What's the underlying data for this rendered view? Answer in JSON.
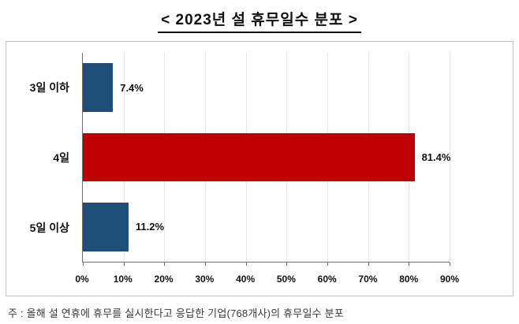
{
  "title": "< 2023년 설 휴무일수 분포 >",
  "footnote": "주 : 올해 설 연휴에 휴무를 실시한다고 응답한 기업(768개사)의 휴무일수 분포",
  "chart_data": {
    "type": "bar",
    "orientation": "horizontal",
    "title": "< 2023년 설 휴무일수 분포 >",
    "categories": [
      "3일 이하",
      "4일",
      "5일 이상"
    ],
    "values": [
      7.4,
      81.4,
      11.2
    ],
    "value_labels": [
      "7.4%",
      "81.4%",
      "11.2%"
    ],
    "bar_colors": [
      "#1f4e79",
      "#c00000",
      "#1f4e79"
    ],
    "xlim": [
      0,
      90
    ],
    "x_ticks": [
      0,
      10,
      20,
      30,
      40,
      50,
      60,
      70,
      80,
      90
    ],
    "x_tick_labels": [
      "0%",
      "10%",
      "20%",
      "30%",
      "40%",
      "50%",
      "60%",
      "70%",
      "80%",
      "90%"
    ],
    "grid": true,
    "legend": "none",
    "xlabel": "",
    "ylabel": ""
  }
}
